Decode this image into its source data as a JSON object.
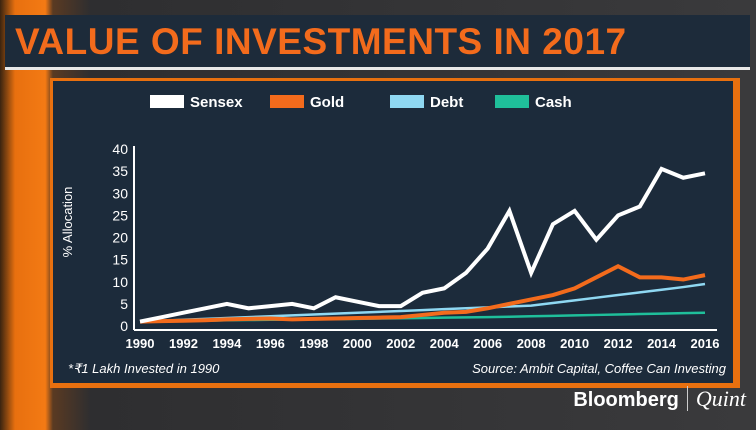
{
  "title": "VALUE OF INVESTMENTS IN 2017",
  "footnote": "*₹1 Lakh Invested in 1990",
  "source": "Source: Ambit Capital, Coffee Can Investing",
  "logo": {
    "brand": "Bloomberg",
    "sub": "Quint"
  },
  "chart_data": {
    "type": "line",
    "ylabel": "% Allocation",
    "ylim": [
      0,
      40
    ],
    "yticks": [
      0,
      5,
      10,
      15,
      20,
      25,
      30,
      35,
      40
    ],
    "xticks": [
      1990,
      1992,
      1994,
      1996,
      1998,
      2000,
      2002,
      2004,
      2006,
      2008,
      2010,
      2012,
      2014,
      2016
    ],
    "x": [
      1990,
      1991,
      1992,
      1993,
      1994,
      1995,
      1996,
      1997,
      1998,
      1999,
      2000,
      2001,
      2002,
      2003,
      2004,
      2005,
      2006,
      2007,
      2008,
      2009,
      2010,
      2011,
      2012,
      2013,
      2014,
      2015,
      2016
    ],
    "legend_position": "top",
    "grid": false,
    "series": [
      {
        "name": "Sensex",
        "color": "#ffffff",
        "values": [
          1,
          2,
          3,
          4,
          5,
          4,
          4.5,
          5,
          4,
          6.5,
          5.5,
          4.5,
          4.5,
          7.5,
          8.5,
          12,
          17.5,
          26,
          12,
          23,
          26,
          19.5,
          25,
          27,
          35.5,
          33.5,
          34.5
        ]
      },
      {
        "name": "Gold",
        "color": "#f36b1c",
        "values": [
          1,
          1.1,
          1.2,
          1.3,
          1.5,
          1.6,
          1.7,
          1.5,
          1.6,
          1.7,
          1.8,
          1.9,
          2,
          2.5,
          3,
          3.2,
          4,
          5,
          6,
          7,
          8.5,
          11,
          13.5,
          11,
          11,
          10.5,
          11.5
        ]
      },
      {
        "name": "Debt",
        "color": "#8fd8f2",
        "values": [
          1,
          1.2,
          1.4,
          1.6,
          1.8,
          2,
          2.2,
          2.4,
          2.6,
          2.8,
          3,
          3.2,
          3.4,
          3.6,
          3.8,
          4,
          4.2,
          4.4,
          4.6,
          5.2,
          5.8,
          6.4,
          7,
          7.6,
          8.2,
          8.8,
          9.5
        ]
      },
      {
        "name": "Cash",
        "color": "#1fbf9a",
        "values": [
          1,
          1.07,
          1.15,
          1.2,
          1.3,
          1.35,
          1.4,
          1.45,
          1.5,
          1.55,
          1.6,
          1.7,
          1.75,
          1.8,
          1.9,
          1.95,
          2,
          2.1,
          2.2,
          2.3,
          2.4,
          2.5,
          2.6,
          2.7,
          2.8,
          2.9,
          3
        ]
      }
    ]
  }
}
